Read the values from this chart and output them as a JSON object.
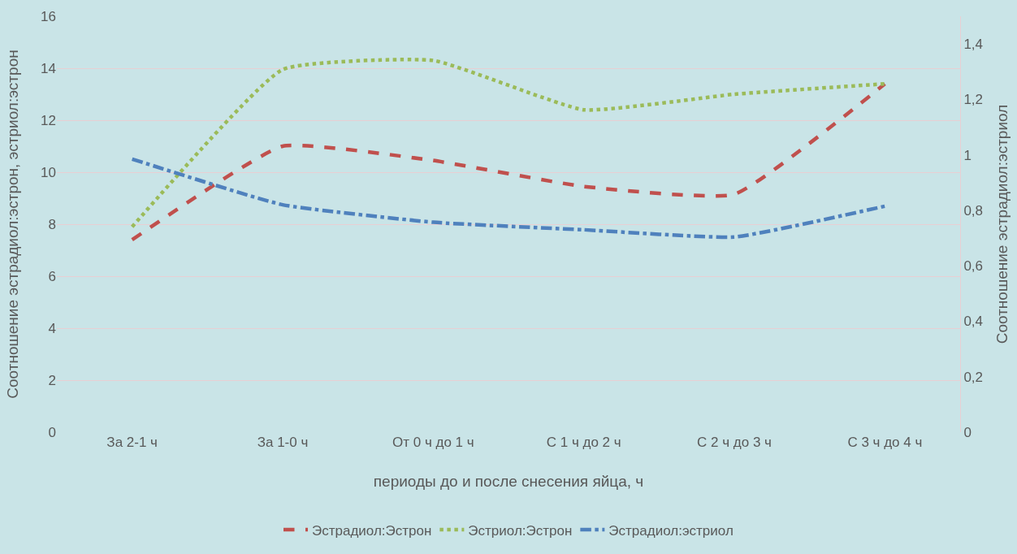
{
  "chart_data": {
    "type": "line",
    "xlabel": "периоды до и после снесения яйца, ч",
    "ylabel": "Соотношение эстрадиол:эстрон, эстриол:эстрон",
    "y2label": "Соотношение эстрадиол:эстриол",
    "categories": [
      "За 2-1 ч",
      "За 1-0 ч",
      "От 0 ч до 1 ч",
      "С 1 ч до 2 ч",
      "С 2 ч до 3 ч",
      "С 3 ч до 4 ч"
    ],
    "series": [
      {
        "name": "Эстрадиол:Эстрон",
        "color": "#c0504d",
        "line_style": "dashed",
        "values": [
          7.4,
          11.0,
          10.45,
          9.45,
          9.15,
          13.4
        ]
      },
      {
        "name": "Эстриол:Эстрон",
        "color": "#9bbb59",
        "line_style": "dotted",
        "values": [
          7.9,
          13.95,
          14.3,
          12.4,
          13.0,
          13.4
        ]
      },
      {
        "name": "Эстрадиол:эстриол",
        "color": "#4f81bd",
        "line_style": "dashdot",
        "axis": "y2",
        "values": [
          0.985,
          0.82,
          0.757,
          0.73,
          0.704,
          0.815
        ]
      }
    ],
    "ylim": [
      0,
      16
    ],
    "yticks": [
      0,
      2,
      4,
      6,
      8,
      10,
      12,
      14,
      16
    ],
    "y2lim": [
      0,
      1.5
    ],
    "y2ticks": [
      0,
      {
        "value": 0.2,
        "label": "0,2"
      },
      {
        "value": 0.4,
        "label": "0,4"
      },
      {
        "value": 0.6,
        "label": "0,6"
      },
      {
        "value": 0.8,
        "label": "0,8"
      },
      1,
      {
        "value": 1.2,
        "label": "1,2"
      },
      {
        "value": 1.4,
        "label": "1,4"
      }
    ],
    "grid": "y",
    "legend": "bottom",
    "marker": "none"
  }
}
